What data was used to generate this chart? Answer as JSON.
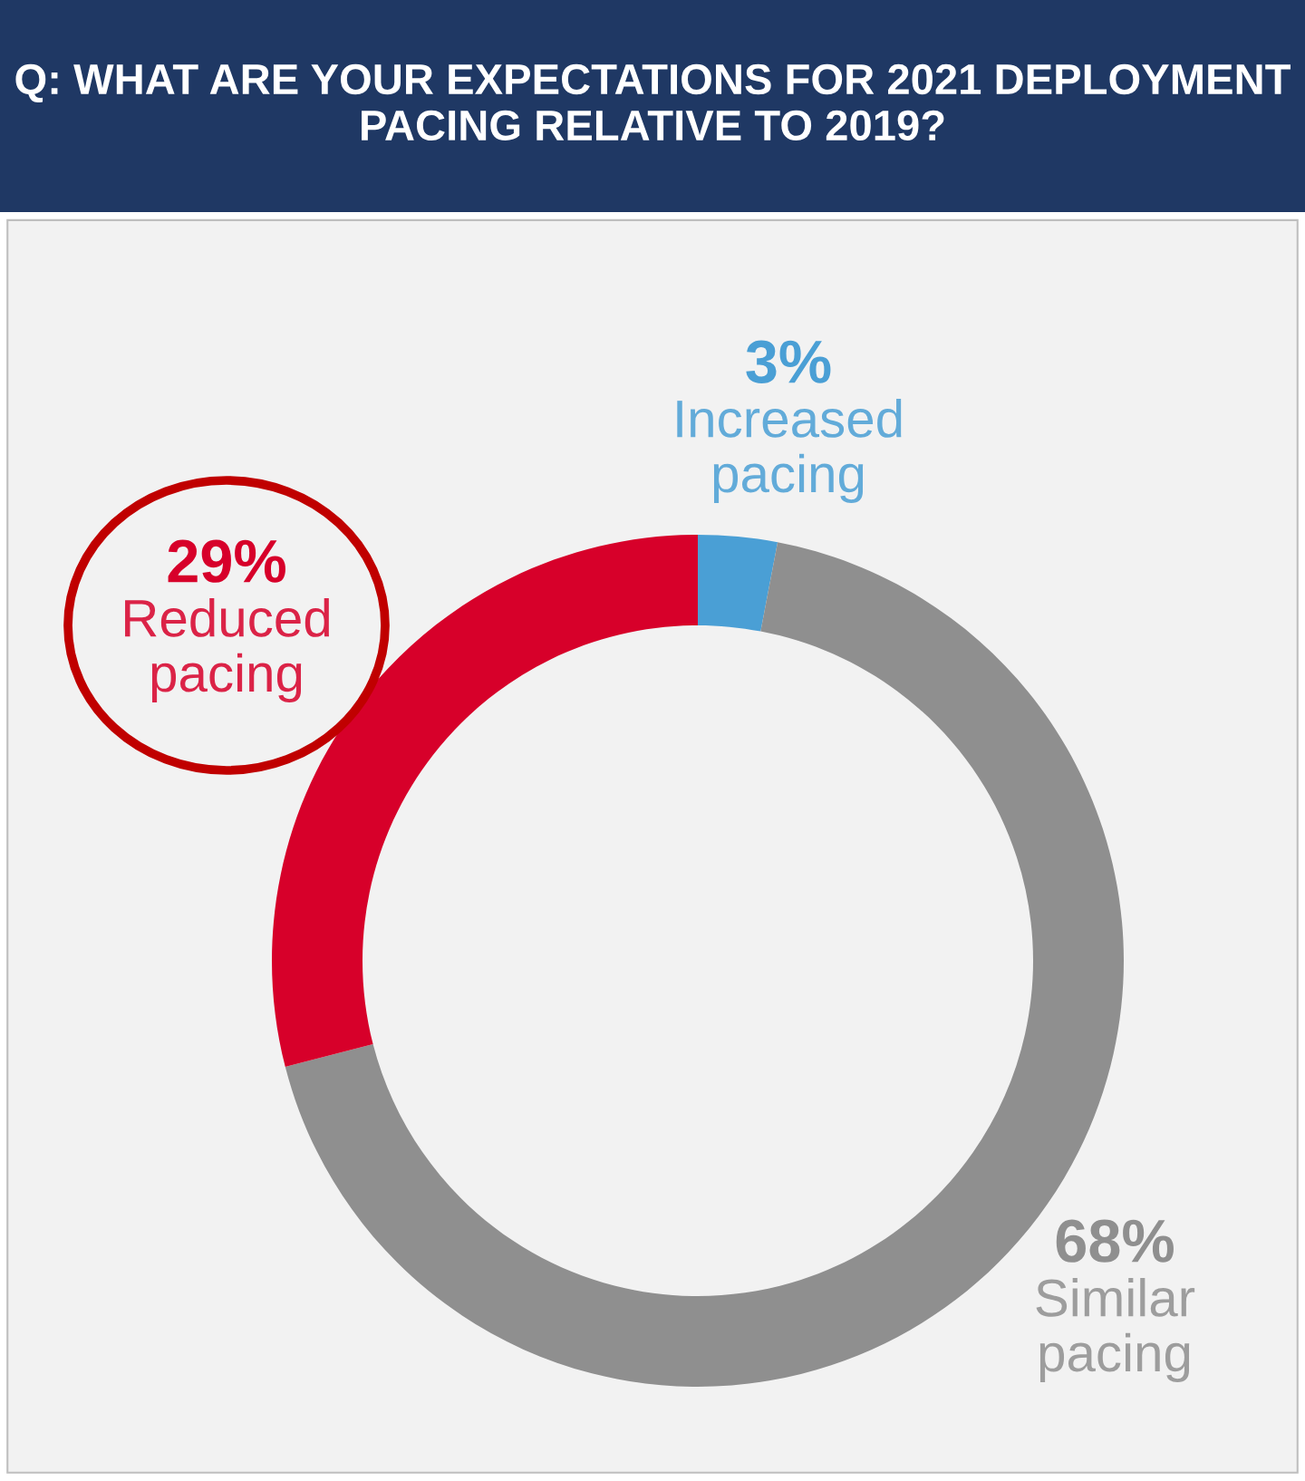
{
  "chart_data": {
    "type": "donut",
    "title": "Q: WHAT ARE YOUR EXPECTATIONS FOR 2021 DEPLOYMENT PACING RELATIVE TO 2019?",
    "categories": [
      "Increased pacing",
      "Similar pacing",
      "Reduced pacing"
    ],
    "values": [
      3,
      68,
      29
    ],
    "colors": [
      "#4a9fd5",
      "#8f8f8f",
      "#d7002a"
    ],
    "value_labels": [
      "3%",
      "68%",
      "29%"
    ],
    "legend": false
  }
}
